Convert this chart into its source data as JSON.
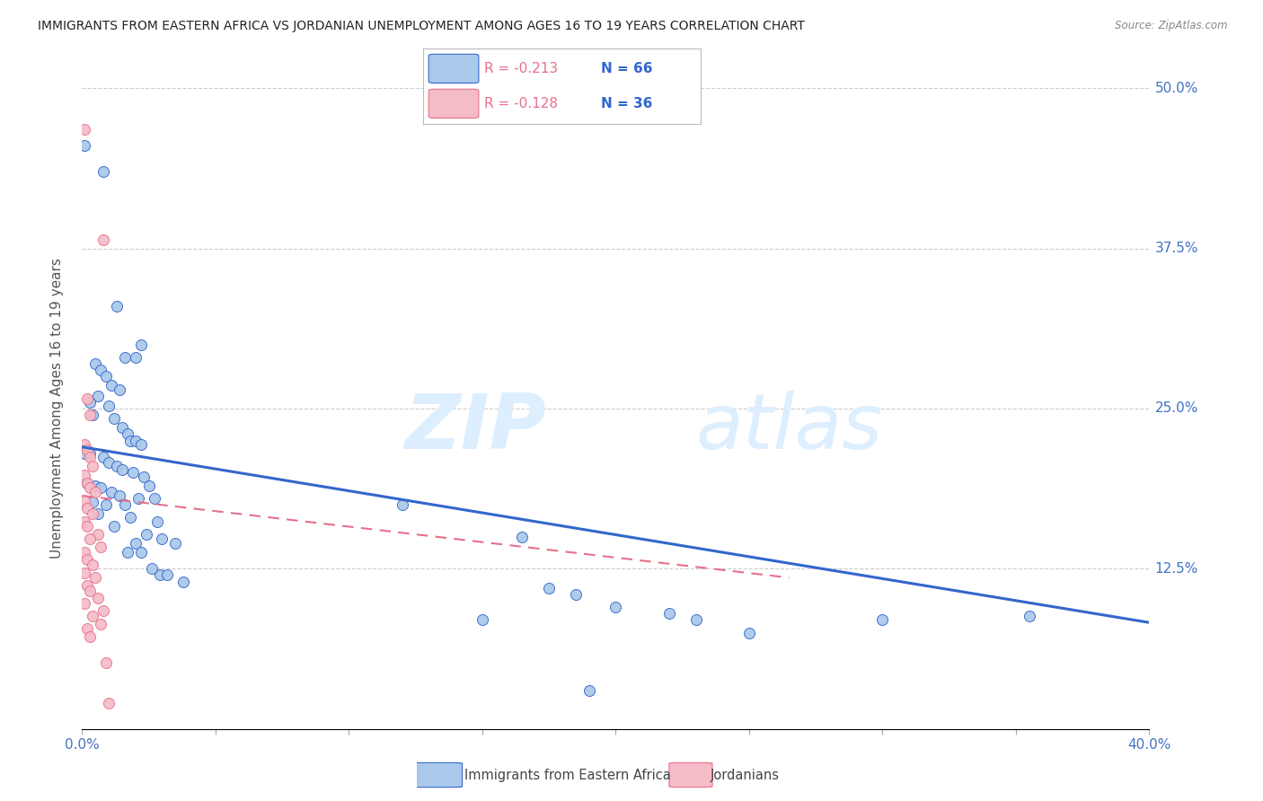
{
  "title": "IMMIGRANTS FROM EASTERN AFRICA VS JORDANIAN UNEMPLOYMENT AMONG AGES 16 TO 19 YEARS CORRELATION CHART",
  "source": "Source: ZipAtlas.com",
  "ylabel_label": "Unemployment Among Ages 16 to 19 years",
  "xlim": [
    0.0,
    0.4
  ],
  "ylim": [
    0.0,
    0.5
  ],
  "xticks": [
    0.0,
    0.05,
    0.1,
    0.15,
    0.2,
    0.25,
    0.3,
    0.35,
    0.4
  ],
  "xticklabels": [
    "0.0%",
    "",
    "",
    "",
    "",
    "",
    "",
    "",
    "40.0%"
  ],
  "yticks": [
    0.0,
    0.125,
    0.25,
    0.375,
    0.5
  ],
  "yticklabels": [
    "",
    "12.5%",
    "25.0%",
    "37.5%",
    "50.0%"
  ],
  "legend_r1": "R = -0.213",
  "legend_n1": "N = 66",
  "legend_r2": "R = -0.128",
  "legend_n2": "N = 36",
  "blue_scatter": [
    [
      0.001,
      0.455
    ],
    [
      0.008,
      0.435
    ],
    [
      0.013,
      0.33
    ],
    [
      0.016,
      0.29
    ],
    [
      0.005,
      0.285
    ],
    [
      0.007,
      0.28
    ],
    [
      0.009,
      0.275
    ],
    [
      0.011,
      0.268
    ],
    [
      0.014,
      0.265
    ],
    [
      0.006,
      0.26
    ],
    [
      0.003,
      0.255
    ],
    [
      0.01,
      0.252
    ],
    [
      0.004,
      0.245
    ],
    [
      0.012,
      0.242
    ],
    [
      0.022,
      0.3
    ],
    [
      0.02,
      0.29
    ],
    [
      0.015,
      0.235
    ],
    [
      0.017,
      0.23
    ],
    [
      0.018,
      0.225
    ],
    [
      0.02,
      0.225
    ],
    [
      0.022,
      0.222
    ],
    [
      0.001,
      0.215
    ],
    [
      0.003,
      0.215
    ],
    [
      0.008,
      0.212
    ],
    [
      0.01,
      0.208
    ],
    [
      0.013,
      0.205
    ],
    [
      0.015,
      0.202
    ],
    [
      0.019,
      0.2
    ],
    [
      0.023,
      0.197
    ],
    [
      0.002,
      0.192
    ],
    [
      0.005,
      0.19
    ],
    [
      0.025,
      0.19
    ],
    [
      0.007,
      0.188
    ],
    [
      0.011,
      0.185
    ],
    [
      0.014,
      0.182
    ],
    [
      0.021,
      0.18
    ],
    [
      0.027,
      0.18
    ],
    [
      0.004,
      0.177
    ],
    [
      0.009,
      0.175
    ],
    [
      0.016,
      0.175
    ],
    [
      0.006,
      0.168
    ],
    [
      0.018,
      0.165
    ],
    [
      0.028,
      0.162
    ],
    [
      0.012,
      0.158
    ],
    [
      0.024,
      0.152
    ],
    [
      0.03,
      0.148
    ],
    [
      0.02,
      0.145
    ],
    [
      0.035,
      0.145
    ],
    [
      0.017,
      0.138
    ],
    [
      0.022,
      0.138
    ],
    [
      0.029,
      0.12
    ],
    [
      0.026,
      0.125
    ],
    [
      0.032,
      0.12
    ],
    [
      0.038,
      0.115
    ],
    [
      0.12,
      0.175
    ],
    [
      0.165,
      0.15
    ],
    [
      0.175,
      0.11
    ],
    [
      0.185,
      0.105
    ],
    [
      0.2,
      0.095
    ],
    [
      0.22,
      0.09
    ],
    [
      0.23,
      0.085
    ],
    [
      0.25,
      0.075
    ],
    [
      0.3,
      0.085
    ],
    [
      0.355,
      0.088
    ],
    [
      0.15,
      0.085
    ],
    [
      0.19,
      0.03
    ]
  ],
  "pink_scatter": [
    [
      0.001,
      0.468
    ],
    [
      0.008,
      0.382
    ],
    [
      0.002,
      0.258
    ],
    [
      0.003,
      0.245
    ],
    [
      0.001,
      0.222
    ],
    [
      0.002,
      0.218
    ],
    [
      0.003,
      0.212
    ],
    [
      0.004,
      0.205
    ],
    [
      0.001,
      0.198
    ],
    [
      0.002,
      0.192
    ],
    [
      0.003,
      0.188
    ],
    [
      0.005,
      0.185
    ],
    [
      0.001,
      0.178
    ],
    [
      0.002,
      0.172
    ],
    [
      0.004,
      0.168
    ],
    [
      0.001,
      0.162
    ],
    [
      0.002,
      0.158
    ],
    [
      0.006,
      0.152
    ],
    [
      0.003,
      0.148
    ],
    [
      0.007,
      0.142
    ],
    [
      0.001,
      0.138
    ],
    [
      0.002,
      0.132
    ],
    [
      0.004,
      0.128
    ],
    [
      0.001,
      0.122
    ],
    [
      0.005,
      0.118
    ],
    [
      0.002,
      0.112
    ],
    [
      0.003,
      0.108
    ],
    [
      0.006,
      0.102
    ],
    [
      0.001,
      0.098
    ],
    [
      0.008,
      0.092
    ],
    [
      0.004,
      0.088
    ],
    [
      0.007,
      0.082
    ],
    [
      0.002,
      0.078
    ],
    [
      0.003,
      0.072
    ],
    [
      0.009,
      0.052
    ],
    [
      0.01,
      0.02
    ]
  ],
  "blue_line_x": [
    0.0,
    0.4
  ],
  "blue_line_y": [
    0.22,
    0.083
  ],
  "pink_line_x": [
    0.0,
    0.265
  ],
  "pink_line_y": [
    0.182,
    0.118
  ],
  "blue_scatter_color": "#aac8ea",
  "pink_scatter_color": "#f5bcc8",
  "blue_line_color": "#3366cc",
  "pink_line_color": "#e8708a",
  "pink_line_dash": [
    6,
    4
  ],
  "watermark_zip": "ZIP",
  "watermark_atlas": "atlas",
  "watermark_color": "#ddeeff",
  "background_color": "#ffffff",
  "grid_color": "#cccccc",
  "tick_label_color": "#4472c4",
  "ylabel_color": "#555555",
  "title_color": "#222222",
  "source_color": "#888888"
}
